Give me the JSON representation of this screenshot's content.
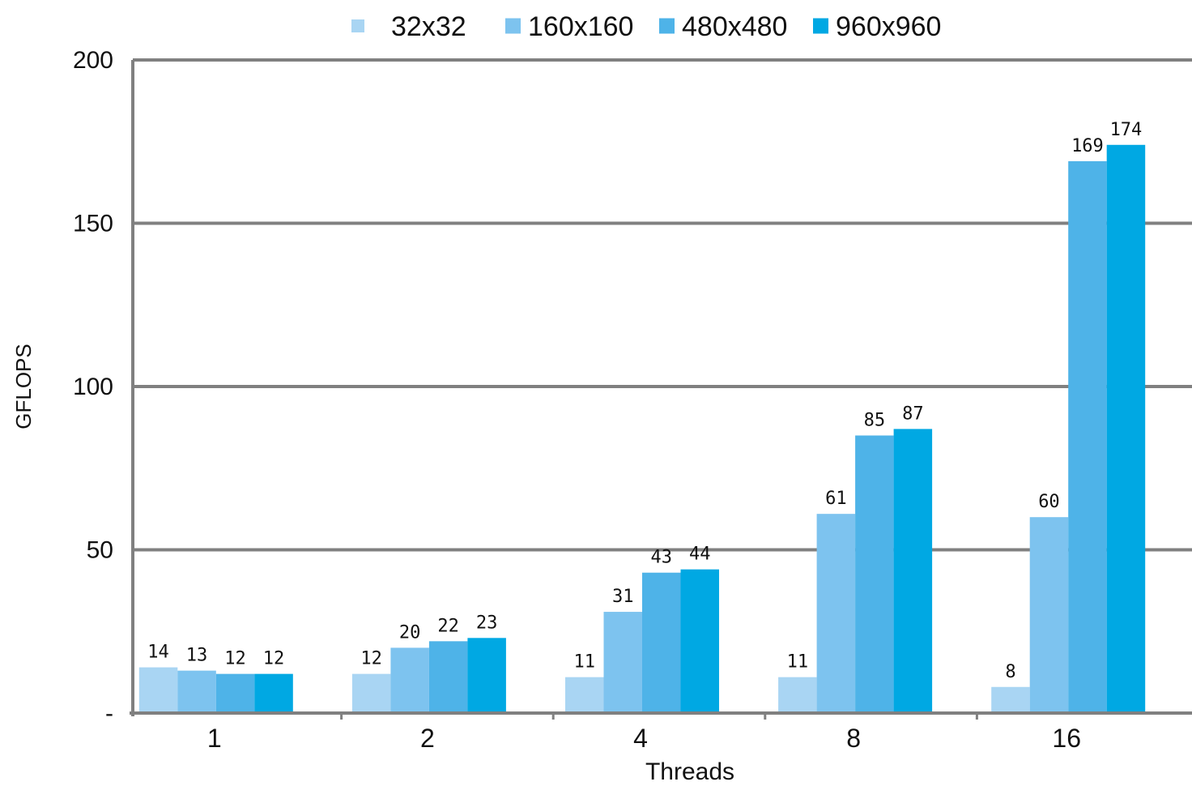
{
  "chart_data": {
    "type": "bar",
    "categories": [
      "1",
      "2",
      "4",
      "8",
      "16"
    ],
    "series": [
      {
        "name": "32x32",
        "color": "#a9d5f3",
        "values": [
          14,
          12,
          11,
          11,
          8
        ]
      },
      {
        "name": "160x160",
        "color": "#7dc3ef",
        "values": [
          13,
          20,
          31,
          61,
          60
        ]
      },
      {
        "name": "480x480",
        "color": "#4eb3e8",
        "values": [
          12,
          22,
          43,
          85,
          169
        ]
      },
      {
        "name": "960x960",
        "color": "#00a8e3",
        "values": [
          12,
          23,
          44,
          87,
          174
        ]
      }
    ],
    "title": "",
    "xlabel": "Threads",
    "ylabel": "GFLOPS",
    "ylim": [
      0,
      200
    ],
    "yticks": [
      {
        "value": 0,
        "label": "-"
      },
      {
        "value": 50,
        "label": "50"
      },
      {
        "value": 100,
        "label": "100"
      },
      {
        "value": 150,
        "label": "150"
      },
      {
        "value": 200,
        "label": "200"
      }
    ],
    "grid": true,
    "legend_position": "top-center",
    "axis_color": "#808080",
    "data_labels": true
  }
}
